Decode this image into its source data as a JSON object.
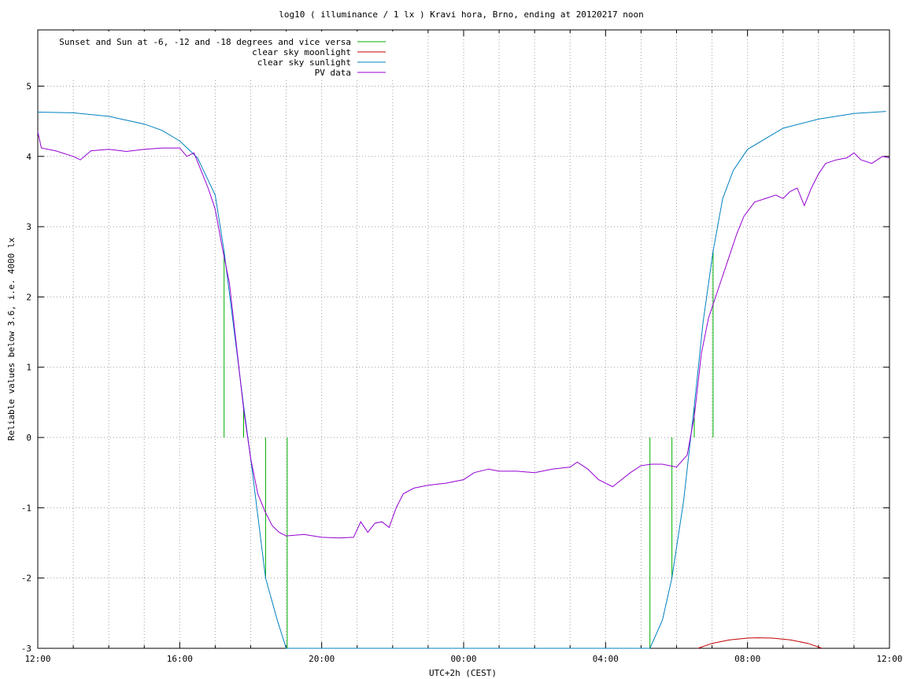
{
  "chart_data": {
    "type": "line",
    "title": "log10 ( illuminance / 1 lx ) Kravi hora, Brno, ending at 20120217 noon",
    "xlabel": "UTC+2h (CEST)",
    "ylabel": "Reliable values below 3.6, i.e. 4000 lx",
    "x_unit": "hours of day",
    "x_range": [
      12,
      36
    ],
    "ylim": [
      -3,
      5.8
    ],
    "grid": true,
    "legend_position": "top-left",
    "x_ticks": [
      {
        "x": 12,
        "label": "12:00"
      },
      {
        "x": 16,
        "label": "16:00"
      },
      {
        "x": 20,
        "label": "20:00"
      },
      {
        "x": 24,
        "label": "00:00"
      },
      {
        "x": 28,
        "label": "04:00"
      },
      {
        "x": 32,
        "label": "08:00"
      },
      {
        "x": 36,
        "label": "12:00"
      }
    ],
    "y_ticks": [
      {
        "y": 5,
        "label": "5"
      },
      {
        "y": 4,
        "label": "4"
      },
      {
        "y": 3,
        "label": "3"
      },
      {
        "y": 2,
        "label": "2"
      },
      {
        "y": 1,
        "label": "1"
      },
      {
        "y": 0,
        "label": "0"
      },
      {
        "y": -1,
        "label": "-1"
      },
      {
        "y": -2,
        "label": "-2"
      },
      {
        "y": -3,
        "label": "-3"
      }
    ],
    "series": [
      {
        "name": "Sunset and Sun at -6, -12 and -18 degrees and vice versa",
        "color": "#00b000",
        "style": "impulses",
        "points": [
          {
            "x": 17.25,
            "y": 2.65
          },
          {
            "x": 17.8,
            "y": 0.45
          },
          {
            "x": 18.42,
            "y": -2.0
          },
          {
            "x": 19.03,
            "y": -3.0
          },
          {
            "x": 29.25,
            "y": -3.0
          },
          {
            "x": 29.87,
            "y": -2.0
          },
          {
            "x": 30.5,
            "y": 0.45
          },
          {
            "x": 31.03,
            "y": 2.65
          }
        ]
      },
      {
        "name": "clear sky moonlight",
        "color": "#c00000",
        "points": [
          [
            30.6,
            -3.0
          ],
          [
            31.0,
            -2.93
          ],
          [
            31.5,
            -2.88
          ],
          [
            32.0,
            -2.855
          ],
          [
            32.3,
            -2.85
          ],
          [
            32.7,
            -2.855
          ],
          [
            33.2,
            -2.88
          ],
          [
            33.7,
            -2.93
          ],
          [
            34.1,
            -3.0
          ]
        ]
      },
      {
        "name": "clear sky sunlight",
        "color": "#0080c0",
        "points": [
          [
            12,
            4.63
          ],
          [
            13,
            4.62
          ],
          [
            14,
            4.57
          ],
          [
            15,
            4.46
          ],
          [
            15.5,
            4.37
          ],
          [
            16,
            4.22
          ],
          [
            16.5,
            3.98
          ],
          [
            17,
            3.45
          ],
          [
            17.25,
            2.65
          ],
          [
            17.5,
            1.65
          ],
          [
            17.8,
            0.45
          ],
          [
            18.0,
            -0.3
          ],
          [
            18.42,
            -2.0
          ],
          [
            18.75,
            -2.6
          ],
          [
            19.0,
            -3.0
          ],
          [
            29.25,
            -3.0
          ],
          [
            29.6,
            -2.6
          ],
          [
            29.87,
            -2.0
          ],
          [
            30.2,
            -0.9
          ],
          [
            30.5,
            0.45
          ],
          [
            30.75,
            1.65
          ],
          [
            31.03,
            2.65
          ],
          [
            31.3,
            3.4
          ],
          [
            31.6,
            3.8
          ],
          [
            32.0,
            4.1
          ],
          [
            33.0,
            4.4
          ],
          [
            34.0,
            4.53
          ],
          [
            35.0,
            4.61
          ],
          [
            35.9,
            4.64
          ]
        ]
      },
      {
        "name": "PV data",
        "color": "#9400d3",
        "points": [
          [
            12.0,
            4.35
          ],
          [
            12.1,
            4.12
          ],
          [
            12.5,
            4.08
          ],
          [
            13.0,
            4.0
          ],
          [
            13.2,
            3.95
          ],
          [
            13.5,
            4.08
          ],
          [
            14.0,
            4.1
          ],
          [
            14.5,
            4.07
          ],
          [
            15.0,
            4.1
          ],
          [
            15.5,
            4.12
          ],
          [
            16.0,
            4.12
          ],
          [
            16.2,
            4.0
          ],
          [
            16.4,
            4.05
          ],
          [
            16.6,
            3.8
          ],
          [
            16.8,
            3.55
          ],
          [
            17.0,
            3.25
          ],
          [
            17.2,
            2.7
          ],
          [
            17.4,
            2.2
          ],
          [
            17.6,
            1.3
          ],
          [
            17.8,
            0.4
          ],
          [
            18.0,
            -0.3
          ],
          [
            18.2,
            -0.8
          ],
          [
            18.4,
            -1.05
          ],
          [
            18.6,
            -1.25
          ],
          [
            18.8,
            -1.35
          ],
          [
            19.0,
            -1.4
          ],
          [
            19.5,
            -1.38
          ],
          [
            20.0,
            -1.42
          ],
          [
            20.5,
            -1.43
          ],
          [
            20.9,
            -1.42
          ],
          [
            21.1,
            -1.2
          ],
          [
            21.3,
            -1.35
          ],
          [
            21.5,
            -1.22
          ],
          [
            21.7,
            -1.2
          ],
          [
            21.9,
            -1.28
          ],
          [
            22.1,
            -1.0
          ],
          [
            22.3,
            -0.8
          ],
          [
            22.6,
            -0.72
          ],
          [
            23.0,
            -0.68
          ],
          [
            23.5,
            -0.65
          ],
          [
            24.0,
            -0.6
          ],
          [
            24.3,
            -0.5
          ],
          [
            24.7,
            -0.45
          ],
          [
            25.0,
            -0.48
          ],
          [
            25.5,
            -0.48
          ],
          [
            26.0,
            -0.5
          ],
          [
            26.5,
            -0.45
          ],
          [
            27.0,
            -0.42
          ],
          [
            27.2,
            -0.35
          ],
          [
            27.5,
            -0.45
          ],
          [
            27.8,
            -0.6
          ],
          [
            28.2,
            -0.7
          ],
          [
            28.4,
            -0.62
          ],
          [
            28.7,
            -0.5
          ],
          [
            29.0,
            -0.4
          ],
          [
            29.3,
            -0.38
          ],
          [
            29.6,
            -0.38
          ],
          [
            30.0,
            -0.42
          ],
          [
            30.3,
            -0.25
          ],
          [
            30.5,
            0.3
          ],
          [
            30.7,
            1.2
          ],
          [
            30.9,
            1.7
          ],
          [
            31.1,
            2.0
          ],
          [
            31.3,
            2.3
          ],
          [
            31.5,
            2.6
          ],
          [
            31.7,
            2.9
          ],
          [
            31.9,
            3.15
          ],
          [
            32.2,
            3.35
          ],
          [
            32.5,
            3.4
          ],
          [
            32.8,
            3.45
          ],
          [
            33.0,
            3.4
          ],
          [
            33.2,
            3.5
          ],
          [
            33.4,
            3.55
          ],
          [
            33.6,
            3.3
          ],
          [
            33.8,
            3.55
          ],
          [
            34.0,
            3.75
          ],
          [
            34.2,
            3.9
          ],
          [
            34.5,
            3.95
          ],
          [
            34.8,
            3.98
          ],
          [
            35.0,
            4.05
          ],
          [
            35.2,
            3.95
          ],
          [
            35.5,
            3.9
          ],
          [
            35.8,
            4.0
          ],
          [
            36.0,
            3.98
          ]
        ]
      }
    ]
  }
}
